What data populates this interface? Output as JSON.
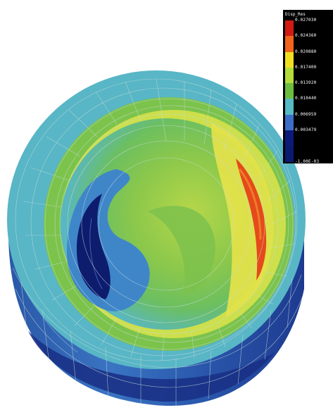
{
  "legend": {
    "title": "Disp_Res",
    "entries": [
      {
        "value": "0.027030",
        "color": "#d21a12"
      },
      {
        "value": "0.024360",
        "color": "#f0641c"
      },
      {
        "value": "0.020880",
        "color": "#f0e020"
      },
      {
        "value": "0.017400",
        "color": "#b4dc3a"
      },
      {
        "value": "0.013920",
        "color": "#6cbd3f"
      },
      {
        "value": "0.010440",
        "color": "#56b9c3"
      },
      {
        "value": "0.006959",
        "color": "#3c6ec8"
      },
      {
        "value": "0.003479",
        "color": "#0c1a7a"
      },
      {
        "value": "-1.00E-03",
        "color": "#0a1a70"
      }
    ]
  },
  "colors": {
    "background": "#ffffff",
    "mesh_line": "#c8dcd8",
    "outer_wall_dark": "#1f3a8c",
    "outer_wall_mid": "#3a70bf",
    "rim_top": "#58b7c8",
    "inner_green": "#7fc24a",
    "inner_yellow": "#d9e046",
    "hot_red": "#e8441b",
    "cold_navy": "#0e1c6e",
    "mid_blue": "#3e84c8"
  }
}
